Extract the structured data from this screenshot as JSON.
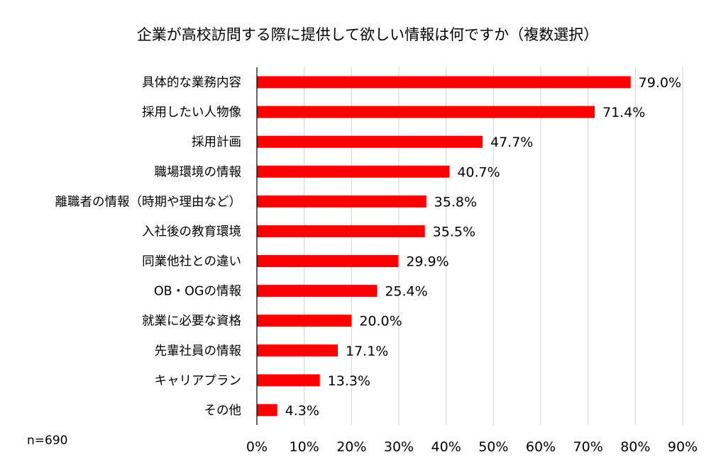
{
  "chart_data": {
    "type": "bar",
    "orientation": "horizontal",
    "title": "企業が高校訪問する際に提供して欲しい情報は何ですか（複数選択）",
    "categories": [
      "具体的な業務内容",
      "採用したい人物像",
      "採用計画",
      "職場環境の情報",
      "離職者の情報（時期や理由など）",
      "入社後の教育環境",
      "同業他社との違い",
      "OB・OGの情報",
      "就業に必要な資格",
      "先輩社員の情報",
      "キャリアプラン",
      "その他"
    ],
    "values": [
      79.0,
      71.4,
      47.7,
      40.7,
      35.8,
      35.5,
      29.9,
      25.4,
      20.0,
      17.1,
      13.3,
      4.3
    ],
    "data_labels": [
      "79.0%",
      "71.4%",
      "47.7%",
      "40.7%",
      "35.8%",
      "35.5%",
      "29.9%",
      "25.4%",
      "20.0%",
      "17.1%",
      "13.3%",
      "4.3%"
    ],
    "xlim": [
      0,
      90
    ],
    "x_ticks": [
      0,
      10,
      20,
      30,
      40,
      50,
      60,
      70,
      80,
      90
    ],
    "x_tick_labels": [
      "0%",
      "10%",
      "20%",
      "30%",
      "40%",
      "50%",
      "60%",
      "70%",
      "80%",
      "90%"
    ],
    "grid": "vertical",
    "legend": "none",
    "bar_color": "#ff0000",
    "grid_color": "#d9d9d9",
    "note": "n=690"
  }
}
